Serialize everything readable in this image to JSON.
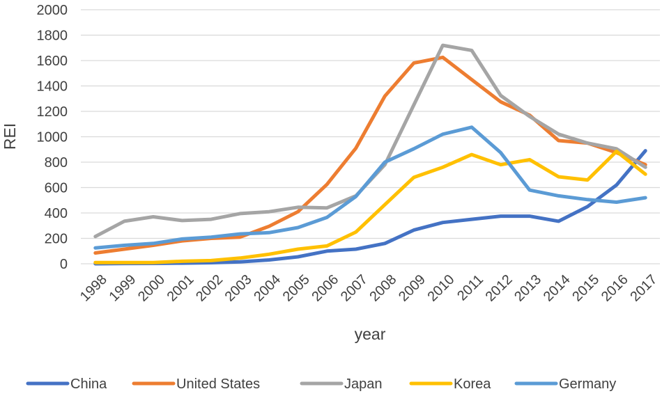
{
  "chart_data": {
    "type": "line",
    "title": "",
    "xlabel": "year",
    "ylabel": "REI",
    "ylim": [
      0,
      2000
    ],
    "yticks": [
      "0",
      "200",
      "400",
      "600",
      "800",
      "1000",
      "1200",
      "1400",
      "1600",
      "1800",
      "2000"
    ],
    "grid": true,
    "legend_position": "bottom",
    "categories": [
      "1998",
      "1999",
      "2000",
      "2001",
      "2002",
      "2003",
      "2004",
      "2005",
      "2006",
      "2007",
      "2008",
      "2009",
      "2010",
      "2011",
      "2012",
      "2013",
      "2014",
      "2015",
      "2016",
      "2017"
    ],
    "series": [
      {
        "name": "China",
        "color": "#4472c4",
        "values": [
          0,
          2,
          3,
          5,
          8,
          15,
          30,
          55,
          100,
          115,
          160,
          265,
          325,
          350,
          375,
          375,
          335,
          450,
          620,
          890
        ]
      },
      {
        "name": "United States",
        "color": "#ed7d31",
        "values": [
          85,
          115,
          145,
          180,
          200,
          210,
          295,
          410,
          625,
          910,
          1320,
          1580,
          1625,
          1450,
          1275,
          1170,
          970,
          950,
          875,
          780
        ]
      },
      {
        "name": "Japan",
        "color": "#a5a5a5",
        "values": [
          215,
          335,
          370,
          340,
          350,
          395,
          410,
          445,
          440,
          535,
          780,
          1250,
          1720,
          1680,
          1325,
          1160,
          1020,
          950,
          905,
          760
        ]
      },
      {
        "name": "Korea",
        "color": "#ffc000",
        "values": [
          10,
          10,
          10,
          20,
          25,
          45,
          75,
          115,
          140,
          250,
          465,
          680,
          760,
          860,
          780,
          820,
          685,
          660,
          885,
          705
        ]
      },
      {
        "name": "Germany",
        "color": "#5b9bd5",
        "values": [
          125,
          145,
          160,
          195,
          210,
          235,
          245,
          285,
          365,
          530,
          800,
          905,
          1020,
          1075,
          875,
          580,
          535,
          505,
          485,
          520
        ]
      }
    ]
  }
}
